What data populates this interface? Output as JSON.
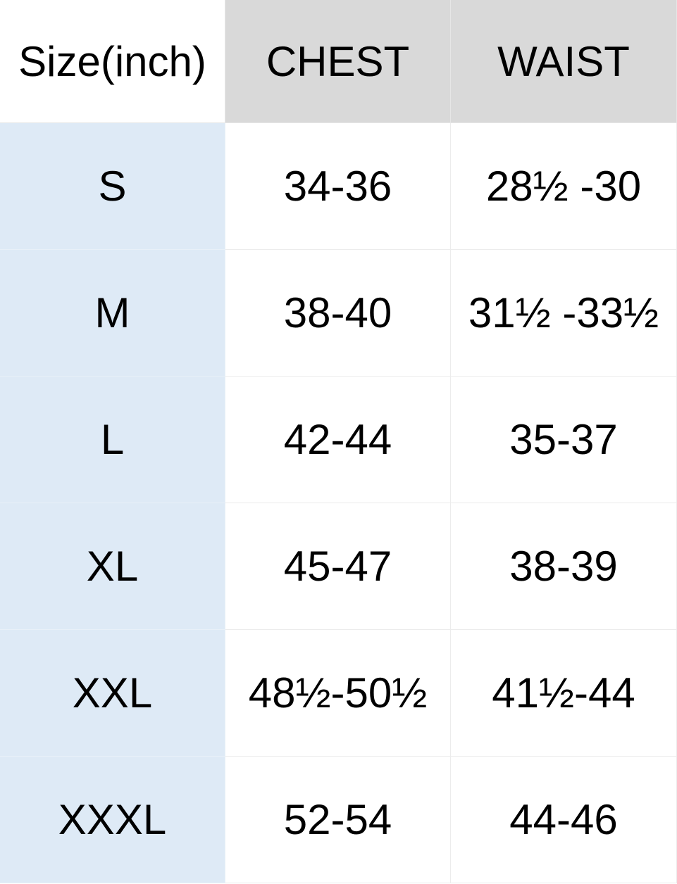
{
  "table": {
    "header": [
      "Size(inch)",
      "CHEST",
      "WAIST"
    ],
    "rows": [
      [
        "S",
        "34-36",
        "28½ -30"
      ],
      [
        "M",
        "38-40",
        "31½ -33½"
      ],
      [
        "L",
        "42-44",
        "35-37"
      ],
      [
        "XL",
        "45-47",
        "38-39"
      ],
      [
        "XXL",
        "48½-50½",
        "41½-44"
      ],
      [
        "XXXL",
        "52-54",
        "44-46"
      ]
    ]
  }
}
